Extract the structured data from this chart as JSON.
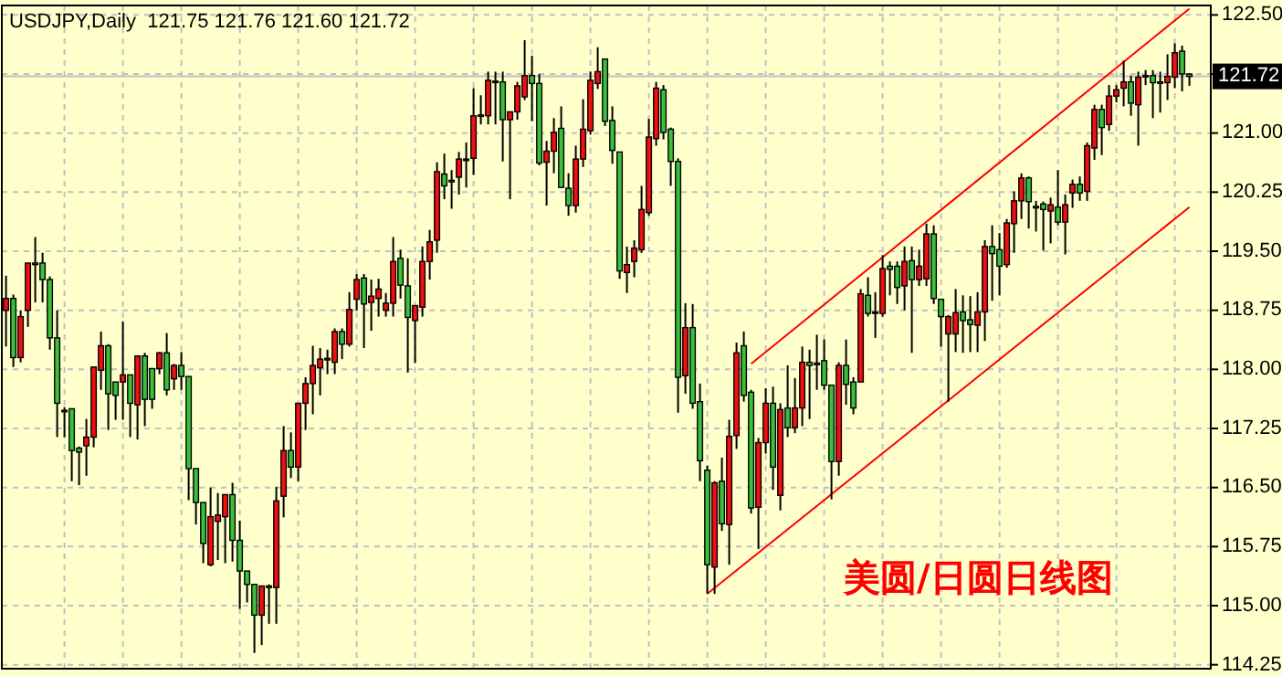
{
  "chart_data": {
    "type": "candlestick",
    "title": "USDJPY,Daily  121.75 121.76 121.60 121.72",
    "annotations": [
      "美圆/日圆日线图"
    ],
    "categories": [
      null,
      null,
      null,
      null,
      null,
      null,
      null,
      null,
      null,
      null,
      null,
      null,
      null,
      null,
      null,
      null,
      null,
      null,
      null,
      null,
      null,
      null,
      null,
      null,
      null,
      null,
      null,
      null,
      null,
      null,
      null,
      null,
      null,
      null,
      null,
      null,
      null,
      null,
      null,
      null,
      null,
      null,
      null,
      null,
      null,
      null,
      null,
      null,
      null,
      null,
      null,
      null,
      null,
      null,
      null,
      null,
      null,
      null,
      null,
      null,
      null,
      null,
      null,
      null,
      null,
      null,
      null,
      null,
      null,
      null,
      null,
      null,
      null,
      null,
      null,
      null,
      null,
      null,
      null,
      null,
      null,
      null,
      null,
      null,
      null,
      null,
      null,
      null,
      null,
      null,
      null,
      null,
      null,
      null,
      null,
      null,
      null,
      null,
      null,
      null,
      null,
      null,
      null,
      null,
      null,
      null,
      null,
      null,
      null,
      null,
      null,
      null,
      null,
      null,
      null,
      null,
      null,
      null,
      null,
      null,
      null,
      null,
      null,
      null,
      null,
      null,
      null,
      null,
      null,
      null,
      null,
      null,
      null,
      null,
      null,
      null,
      null,
      null,
      null,
      null,
      null,
      null,
      null,
      null,
      null,
      null,
      null,
      null,
      null,
      null,
      null,
      null,
      null,
      null,
      null,
      null,
      null,
      null,
      null,
      null,
      null,
      null,
      null
    ],
    "colors": [
      "#f01010",
      "#3cc03c",
      "#f01010",
      "#f01010",
      "#3cc03c",
      "#3cc03c",
      "#3cc03c",
      "#3cc03c",
      "#3cc03c",
      "#3cc03c",
      "#3cc03c",
      "#f01010",
      "#f01010",
      "#f01010",
      "#3cc03c",
      "#3cc03c",
      "#f01010",
      "#3cc03c",
      "#f01010",
      "#3cc03c",
      "#3cc03c",
      "#f01010",
      "#3cc03c",
      "#f01010",
      "#3cc03c",
      "#3cc03c",
      "#3cc03c",
      "#3cc03c",
      "#f01010",
      "#f01010",
      "#f01010",
      "#3cc03c",
      "#3cc03c",
      "#3cc03c",
      "#3cc03c",
      "#f01010",
      "#3cc03c",
      "#f01010",
      "#f01010",
      "#3cc03c",
      "#f01010",
      "#f01010",
      "#f01010",
      "#f01010",
      "#f01010",
      "#f01010",
      "#3cc03c",
      "#f01010",
      "#f01010",
      "#3cc03c",
      "#f01010",
      "#f01010",
      "#f01010",
      "#f01010",
      "#3cc03c",
      "#3cc03c",
      "#f01010",
      "#f01010",
      "#f01010",
      "#f01010",
      "#3cc03c",
      "#3cc03c",
      "#f01010",
      "#000000",
      "#f01010",
      "#f01010",
      "#f01010",
      "#3cc03c",
      "#3cc03c",
      "#f01010",
      "#f01010",
      "#f01010",
      "#3cc03c",
      "#3cc03c",
      "#f01010",
      "#f01010",
      "#3cc03c",
      "#3cc03c",
      "#f01010",
      "#f01010",
      "#f01010",
      "#f01010",
      "#3cc03c",
      "#3cc03c",
      "#3cc03c",
      "#f01010",
      "#f01010",
      "#f01010",
      "#f01010",
      "#f01010",
      "#3cc03c",
      "#3cc03c",
      "#3cc03c",
      "#f01010",
      "#3cc03c",
      "#3cc03c",
      "#3cc03c",
      "#f01010",
      "#3cc03c",
      "#f01010",
      "#f01010",
      "#3cc03c",
      "#3cc03c",
      "#f01010",
      "#f01010",
      "#3cc03c",
      "#f01010",
      "#3cc03c",
      "#f01010",
      "#f01010",
      "#3cc03c",
      "#f01010",
      "#3cc03c",
      "#3cc03c",
      "#f01010",
      "#3cc03c",
      "#3cc03c",
      "#f01010",
      "#3cc03c",
      "#000000",
      "#f01010",
      "#3cc03c",
      "#3cc03c",
      "#f01010",
      "#3cc03c",
      "#f01010",
      "#f01010",
      "#3cc03c",
      "#3cc03c",
      "#f01010",
      "#f01010",
      "#3cc03c",
      "#3cc03c",
      "#f01010",
      "#f01010",
      "#3cc03c",
      "#3cc03c",
      "#f01010",
      "#f01010",
      "#f01010",
      "#3cc03c",
      "#3cc03c",
      "#3cc03c",
      "#f01010",
      "#3cc03c",
      "#f01010",
      "#f01010",
      "#3cc03c",
      "#f01010",
      "#f01010",
      "#3cc03c",
      "#f01010",
      "#f01010",
      "#f01010",
      "#3cc03c",
      "#f01010",
      "#f01010",
      "#3cc03c",
      "#3cc03c",
      "#f01010",
      "#f01010",
      "#3cc03c",
      "#3cc03c"
    ],
    "ohlc": [
      [
        118.75,
        119.19,
        118.29,
        118.9
      ],
      [
        118.9,
        118.95,
        118.03,
        118.15
      ],
      [
        118.15,
        118.75,
        118.09,
        118.67
      ],
      [
        118.75,
        119.35,
        118.54,
        119.35
      ],
      [
        119.35,
        119.68,
        118.85,
        119.33
      ],
      [
        119.35,
        119.48,
        118.85,
        119.14
      ],
      [
        119.14,
        119.18,
        118.25,
        118.4
      ],
      [
        118.4,
        118.75,
        117.14,
        117.57
      ],
      [
        117.48,
        117.52,
        117.14,
        117.47
      ],
      [
        117.5,
        117.5,
        116.58,
        116.97
      ],
      [
        117.0,
        117.02,
        116.53,
        116.95
      ],
      [
        117.03,
        117.37,
        116.65,
        117.14
      ],
      [
        117.14,
        118.03,
        117.01,
        118.03
      ],
      [
        117.99,
        118.48,
        117.74,
        118.3
      ],
      [
        118.3,
        118.32,
        117.23,
        117.69
      ],
      [
        117.84,
        117.84,
        117.36,
        117.67
      ],
      [
        117.84,
        118.61,
        117.36,
        117.93
      ],
      [
        117.93,
        117.93,
        117.14,
        117.57
      ],
      [
        117.55,
        118.17,
        117.11,
        118.17
      ],
      [
        118.17,
        118.21,
        117.28,
        117.62
      ],
      [
        118.01,
        118.01,
        117.5,
        117.62
      ],
      [
        118.01,
        118.22,
        117.94,
        118.21
      ],
      [
        118.21,
        118.46,
        117.67,
        117.74
      ],
      [
        117.88,
        118.07,
        117.74,
        118.05
      ],
      [
        118.05,
        118.22,
        117.74,
        117.91
      ],
      [
        117.91,
        117.91,
        116.34,
        116.74
      ],
      [
        116.74,
        116.74,
        116.03,
        116.31
      ],
      [
        116.31,
        116.31,
        115.54,
        115.79
      ],
      [
        115.52,
        116.5,
        115.5,
        116.13
      ],
      [
        116.07,
        116.43,
        115.58,
        116.15
      ],
      [
        116.13,
        116.41,
        115.54,
        116.41
      ],
      [
        116.41,
        116.56,
        115.56,
        115.83
      ],
      [
        115.83,
        116.08,
        114.96,
        115.44
      ],
      [
        115.44,
        115.44,
        115.04,
        115.27
      ],
      [
        115.27,
        115.27,
        114.4,
        114.88
      ],
      [
        114.88,
        115.25,
        114.5,
        115.25
      ],
      [
        115.25,
        115.27,
        114.77,
        115.23
      ],
      [
        115.23,
        116.51,
        114.77,
        116.33
      ],
      [
        116.39,
        117.28,
        116.12,
        116.97
      ],
      [
        116.97,
        117.2,
        116.62,
        116.76
      ],
      [
        116.76,
        117.57,
        116.58,
        117.57
      ],
      [
        117.57,
        117.9,
        117.23,
        117.82
      ],
      [
        117.82,
        118.3,
        117.43,
        118.05
      ],
      [
        118.02,
        118.27,
        117.67,
        118.13
      ],
      [
        118.12,
        118.25,
        117.94,
        118.14
      ],
      [
        118.09,
        118.52,
        117.94,
        118.48
      ],
      [
        118.48,
        118.52,
        118.13,
        118.32
      ],
      [
        118.32,
        118.98,
        118.29,
        118.76
      ],
      [
        118.89,
        119.21,
        118.75,
        119.14
      ],
      [
        119.16,
        119.21,
        118.27,
        118.83
      ],
      [
        118.85,
        119.14,
        118.49,
        118.93
      ],
      [
        118.9,
        119.15,
        118.67,
        119.02
      ],
      [
        118.75,
        118.97,
        118.67,
        118.84
      ],
      [
        118.84,
        119.68,
        118.67,
        119.37
      ],
      [
        119.41,
        119.52,
        118.9,
        119.07
      ],
      [
        119.06,
        119.41,
        117.96,
        118.66
      ],
      [
        118.62,
        118.81,
        118.08,
        118.81
      ],
      [
        118.79,
        119.56,
        118.67,
        119.37
      ],
      [
        119.37,
        119.77,
        119.14,
        119.62
      ],
      [
        119.64,
        120.63,
        119.48,
        120.51
      ],
      [
        120.48,
        120.74,
        120.16,
        120.33
      ],
      [
        120.4,
        120.53,
        120.04,
        120.38
      ],
      [
        120.44,
        120.76,
        120.22,
        120.67
      ],
      [
        120.67,
        120.88,
        120.31,
        120.67
      ],
      [
        120.68,
        121.57,
        120.47,
        121.22
      ],
      [
        121.22,
        121.48,
        121.11,
        121.23
      ],
      [
        121.22,
        121.78,
        121.11,
        121.67
      ],
      [
        121.66,
        121.78,
        121.11,
        121.65
      ],
      [
        121.65,
        121.78,
        120.64,
        121.17
      ],
      [
        121.17,
        121.27,
        120.16,
        121.27
      ],
      [
        121.27,
        121.65,
        121.17,
        121.6
      ],
      [
        121.46,
        122.18,
        121.42,
        121.73
      ],
      [
        121.73,
        121.98,
        121.15,
        121.63
      ],
      [
        121.63,
        121.75,
        120.59,
        120.62
      ],
      [
        120.63,
        120.9,
        120.08,
        120.77
      ],
      [
        120.77,
        121.19,
        120.49,
        121.01
      ],
      [
        121.06,
        121.34,
        120.31,
        120.31
      ],
      [
        120.3,
        120.49,
        119.95,
        120.08
      ],
      [
        120.08,
        120.84,
        119.99,
        120.67
      ],
      [
        120.67,
        121.43,
        120.57,
        121.05
      ],
      [
        121.03,
        121.78,
        120.98,
        121.67
      ],
      [
        121.63,
        122.09,
        121.56,
        121.78
      ],
      [
        121.94,
        121.94,
        121.09,
        121.15
      ],
      [
        121.16,
        121.34,
        120.61,
        120.78
      ],
      [
        120.76,
        120.76,
        119.15,
        119.25
      ],
      [
        119.23,
        119.56,
        118.97,
        119.33
      ],
      [
        119.37,
        119.64,
        119.17,
        119.54
      ],
      [
        119.52,
        120.33,
        119.48,
        120.03
      ],
      [
        119.99,
        121.18,
        119.95,
        120.95
      ],
      [
        120.93,
        121.65,
        120.84,
        121.57
      ],
      [
        121.55,
        121.61,
        120.92,
        121.01
      ],
      [
        121.05,
        121.07,
        120.33,
        120.64
      ],
      [
        120.64,
        120.68,
        117.45,
        117.9
      ],
      [
        117.92,
        118.84,
        117.69,
        118.53
      ],
      [
        118.53,
        118.83,
        117.5,
        117.57
      ],
      [
        117.59,
        117.82,
        116.58,
        116.84
      ],
      [
        116.72,
        116.78,
        115.15,
        115.52
      ],
      [
        115.49,
        116.58,
        115.15,
        116.56
      ],
      [
        116.58,
        116.88,
        115.95,
        116.04
      ],
      [
        116.03,
        117.36,
        115.52,
        117.15
      ],
      [
        117.16,
        118.34,
        116.99,
        118.21
      ],
      [
        118.3,
        118.48,
        117.59,
        117.67
      ],
      [
        117.71,
        117.74,
        116.17,
        116.24
      ],
      [
        116.25,
        117.13,
        115.72,
        117.07
      ],
      [
        117.07,
        117.76,
        116.93,
        117.57
      ],
      [
        117.57,
        117.78,
        116.47,
        116.76
      ],
      [
        116.4,
        117.57,
        116.21,
        117.49
      ],
      [
        117.51,
        118.05,
        117.14,
        117.26
      ],
      [
        117.26,
        117.89,
        117.19,
        117.51
      ],
      [
        117.51,
        118.29,
        117.28,
        118.09
      ],
      [
        118.09,
        118.25,
        117.37,
        118.05
      ],
      [
        118.06,
        118.44,
        117.74,
        118.08
      ],
      [
        118.11,
        118.38,
        117.74,
        117.8
      ],
      [
        117.8,
        117.8,
        116.35,
        116.83
      ],
      [
        116.83,
        118.09,
        116.65,
        118.05
      ],
      [
        118.05,
        118.38,
        117.55,
        117.81
      ],
      [
        117.84,
        117.9,
        117.43,
        117.51
      ],
      [
        117.84,
        119.02,
        117.84,
        118.96
      ],
      [
        118.94,
        119.17,
        118.67,
        118.71
      ],
      [
        118.73,
        118.98,
        118.4,
        118.73
      ],
      [
        118.71,
        119.45,
        118.67,
        119.28
      ],
      [
        119.31,
        119.37,
        118.94,
        119.27
      ],
      [
        119.31,
        119.37,
        118.83,
        119.04
      ],
      [
        119.06,
        119.56,
        118.75,
        119.37
      ],
      [
        119.38,
        119.56,
        118.21,
        119.14
      ],
      [
        119.14,
        119.52,
        119.06,
        119.31
      ],
      [
        119.15,
        119.85,
        119.06,
        119.72
      ],
      [
        119.72,
        119.83,
        118.83,
        118.9
      ],
      [
        118.89,
        118.89,
        118.29,
        118.67
      ],
      [
        118.45,
        118.69,
        117.59,
        118.67
      ],
      [
        118.45,
        119.02,
        118.22,
        118.72
      ],
      [
        118.73,
        118.94,
        118.21,
        118.62
      ],
      [
        118.63,
        118.93,
        118.22,
        118.57
      ],
      [
        118.56,
        118.98,
        118.22,
        118.73
      ],
      [
        118.73,
        119.64,
        118.36,
        119.56
      ],
      [
        119.56,
        119.83,
        118.87,
        119.47
      ],
      [
        119.52,
        119.73,
        118.94,
        119.31
      ],
      [
        119.33,
        119.91,
        119.29,
        119.86
      ],
      [
        119.85,
        120.26,
        119.48,
        120.14
      ],
      [
        120.14,
        120.49,
        119.91,
        120.43
      ],
      [
        120.43,
        120.45,
        119.79,
        120.13
      ],
      [
        120.07,
        120.14,
        119.75,
        120.05
      ],
      [
        120.1,
        120.13,
        119.51,
        120.03
      ],
      [
        120.01,
        120.18,
        119.6,
        120.09
      ],
      [
        120.06,
        120.53,
        119.83,
        119.87
      ],
      [
        119.87,
        120.22,
        119.46,
        120.09
      ],
      [
        120.24,
        120.41,
        120.05,
        120.35
      ],
      [
        120.35,
        120.45,
        120.14,
        120.24
      ],
      [
        120.26,
        120.88,
        120.14,
        120.84
      ],
      [
        120.81,
        121.36,
        120.66,
        121.3
      ],
      [
        121.3,
        121.36,
        120.72,
        121.07
      ],
      [
        121.11,
        121.61,
        121.03,
        121.47
      ],
      [
        121.47,
        121.61,
        121.39,
        121.55
      ],
      [
        121.57,
        121.92,
        121.34,
        121.65
      ],
      [
        121.65,
        121.73,
        121.22,
        121.38
      ],
      [
        121.36,
        121.78,
        120.84,
        121.71
      ],
      [
        121.72,
        121.8,
        121.61,
        121.73
      ],
      [
        121.73,
        121.8,
        121.19,
        121.64
      ],
      [
        121.65,
        121.78,
        121.26,
        121.64
      ],
      [
        121.64,
        122.0,
        121.42,
        121.72
      ],
      [
        121.71,
        122.14,
        121.57,
        122.02
      ],
      [
        122.04,
        122.11,
        121.53,
        121.75
      ],
      [
        121.75,
        121.76,
        121.6,
        121.72
      ]
    ],
    "series": [
      {
        "type": "line",
        "color": "#ff0000",
        "values": [
          null,
          null,
          null,
          null,
          null,
          null,
          null,
          null,
          null,
          null,
          null,
          null,
          null,
          null,
          null,
          null,
          null,
          null,
          null,
          null,
          null,
          null,
          null,
          null,
          null,
          null,
          null,
          null,
          null,
          null,
          null,
          null,
          null,
          null,
          null,
          null,
          null,
          null,
          null,
          null,
          null,
          null,
          null,
          null,
          null,
          null,
          null,
          null,
          null,
          null,
          null,
          null,
          null,
          null,
          null,
          null,
          null,
          null,
          null,
          null,
          null,
          null,
          null,
          null,
          null,
          null,
          null,
          null,
          null,
          null,
          null,
          null,
          null,
          null,
          null,
          null,
          null,
          null,
          null,
          null,
          null,
          null,
          null,
          null,
          null,
          null,
          null,
          null,
          null,
          null,
          null,
          null,
          null,
          null,
          null,
          null,
          null,
          null,
          null,
          null,
          null,
          null,
          118.07,
          null,
          null,
          null,
          null,
          null,
          null,
          null,
          null,
          null,
          null,
          null,
          null,
          null,
          null,
          null,
          null,
          null,
          null,
          null,
          null,
          null,
          null,
          null,
          null,
          null,
          null,
          null,
          null,
          null,
          null,
          null,
          null,
          null,
          null,
          null,
          null,
          null,
          null,
          null,
          null,
          null,
          null,
          null,
          null,
          null,
          null,
          null,
          null,
          null,
          null,
          null,
          null,
          null,
          null,
          null,
          null,
          null,
          null,
          null,
          122.58
        ]
      },
      {
        "type": "line",
        "color": "#ff0000",
        "values": [
          null,
          null,
          null,
          null,
          null,
          null,
          null,
          null,
          null,
          null,
          null,
          null,
          null,
          null,
          null,
          null,
          null,
          null,
          null,
          null,
          null,
          null,
          null,
          null,
          null,
          null,
          null,
          null,
          null,
          null,
          null,
          null,
          null,
          null,
          null,
          null,
          null,
          null,
          null,
          null,
          null,
          null,
          null,
          null,
          null,
          null,
          null,
          null,
          null,
          null,
          null,
          null,
          null,
          null,
          null,
          null,
          null,
          null,
          null,
          null,
          null,
          null,
          null,
          null,
          null,
          null,
          null,
          null,
          null,
          null,
          null,
          null,
          null,
          null,
          null,
          null,
          null,
          null,
          null,
          null,
          null,
          null,
          null,
          null,
          null,
          null,
          null,
          null,
          null,
          null,
          null,
          null,
          null,
          null,
          null,
          null,
          115.15,
          null,
          null,
          null,
          null,
          null,
          null,
          null,
          null,
          null,
          null,
          null,
          null,
          null,
          null,
          null,
          null,
          null,
          null,
          null,
          null,
          null,
          null,
          null,
          null,
          null,
          null,
          null,
          null,
          null,
          null,
          null,
          null,
          null,
          null,
          null,
          null,
          null,
          null,
          null,
          null,
          null,
          null,
          null,
          null,
          null,
          null,
          null,
          null,
          null,
          null,
          null,
          null,
          null,
          null,
          null,
          null,
          null,
          null,
          null,
          null,
          null,
          null,
          null,
          null,
          null,
          120.06
        ]
      }
    ],
    "ref_lines": [
      {
        "axis": "y",
        "value": 121.72,
        "label": "121.72",
        "color": "#c0c0c0"
      }
    ],
    "ylim": [
      114.2,
      122.62
    ],
    "yticks": [
      {
        "value": 114.25,
        "label": "114.25"
      },
      {
        "value": 115,
        "label": "115.00"
      },
      {
        "value": 115.75,
        "label": "115.75"
      },
      {
        "value": 116.5,
        "label": "116.50"
      },
      {
        "value": 117.25,
        "label": "117.25"
      },
      {
        "value": 118,
        "label": "118.00"
      },
      {
        "value": 118.75,
        "label": "118.75"
      },
      {
        "value": 119.5,
        "label": "119.50"
      },
      {
        "value": 120.25,
        "label": "120.25"
      },
      {
        "value": 121,
        "label": "121.00"
      },
      {
        "value": 121.75,
        "label": null
      },
      {
        "value": 122.5,
        "label": "122.50"
      }
    ],
    "grid": true,
    "line_style": "solid"
  }
}
